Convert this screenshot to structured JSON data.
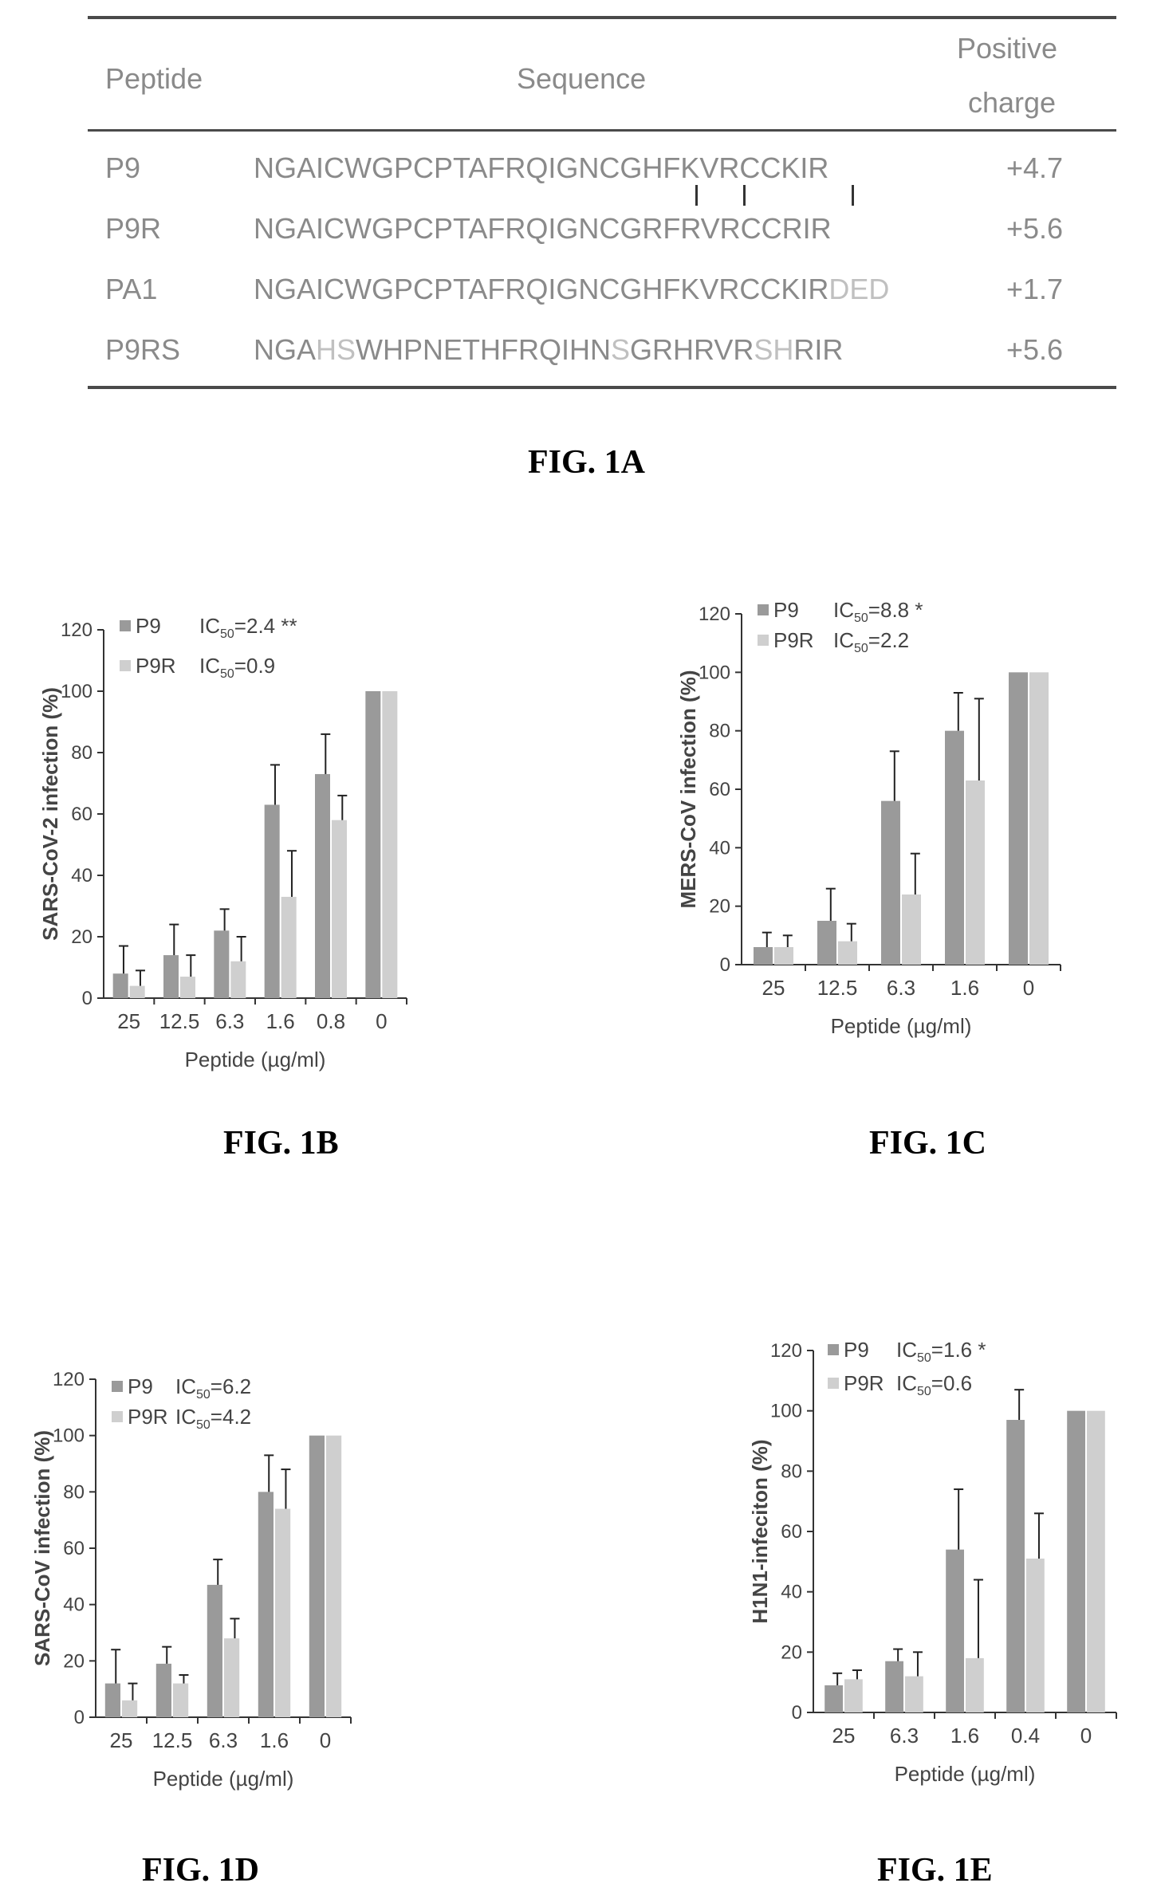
{
  "table": {
    "headers": {
      "peptide": "Peptide",
      "sequence": "Sequence",
      "charge_line1": "Positive",
      "charge_line2": "charge"
    },
    "rows": [
      {
        "peptide": "P9",
        "segments": [
          {
            "t": "NGAICWGPCPTAFRQIGNCGHFKVRCCKIR",
            "m": false
          }
        ],
        "charge": "+4.7"
      },
      {
        "peptide": "P9R",
        "segments": [
          {
            "t": "NGAICWGPCPTAFRQIGNCGRFRVRCCRIR",
            "m": false
          }
        ],
        "charge": "+5.6"
      },
      {
        "peptide": "PA1",
        "segments": [
          {
            "t": "NGAICWGPCPTAFRQIGNCGHFKVRCCKIR",
            "m": false
          },
          {
            "t": "DED",
            "m": true
          }
        ],
        "charge": "+1.7"
      },
      {
        "peptide": "P9RS",
        "segments": [
          {
            "t": "NGA",
            "m": false
          },
          {
            "t": "HS",
            "m": true
          },
          {
            "t": "WHPNETHFRQIHN",
            "m": false
          },
          {
            "t": "S",
            "m": true
          },
          {
            "t": "GRHRVR",
            "m": false
          },
          {
            "t": "SH",
            "m": true
          },
          {
            "t": "RIR",
            "m": false
          }
        ],
        "charge": "+5.6"
      }
    ]
  },
  "captions": {
    "a": "FIG. 1A",
    "b": "FIG. 1B",
    "c": "FIG. 1C",
    "d": "FIG. 1D",
    "e": "FIG. 1E"
  },
  "colors": {
    "p9": "#9a9a9a",
    "p9r": "#cfcfcf",
    "axis": "#333333",
    "text": "#444444"
  },
  "chart_data": [
    {
      "id": "b",
      "type": "bar",
      "categories": [
        "25",
        "12.5",
        "6.3",
        "1.6",
        "0.8",
        "0"
      ],
      "series": [
        {
          "name": "P9",
          "values": [
            8,
            14,
            22,
            63,
            73,
            100
          ],
          "errors": [
            9,
            10,
            7,
            13,
            13,
            0
          ]
        },
        {
          "name": "P9R",
          "values": [
            4,
            7,
            12,
            33,
            58,
            100
          ],
          "errors": [
            5,
            7,
            8,
            15,
            8,
            0
          ]
        }
      ],
      "legend": [
        {
          "name": "P9",
          "ic": "2.4",
          "sig": "**"
        },
        {
          "name": "P9R",
          "ic": "0.9",
          "sig": ""
        }
      ],
      "xlabel": "Peptide (µg/ml)",
      "ylabel": "SARS-CoV-2 infection (%)",
      "ylim": [
        0,
        120
      ],
      "yticks": [
        0,
        20,
        40,
        60,
        80,
        100,
        120
      ]
    },
    {
      "id": "c",
      "type": "bar",
      "categories": [
        "25",
        "12.5",
        "6.3",
        "1.6",
        "0"
      ],
      "series": [
        {
          "name": "P9",
          "values": [
            6,
            15,
            56,
            80,
            100
          ],
          "errors": [
            5,
            11,
            17,
            13,
            0
          ]
        },
        {
          "name": "P9R",
          "values": [
            6,
            8,
            24,
            63,
            100
          ],
          "errors": [
            4,
            6,
            14,
            28,
            0
          ]
        }
      ],
      "legend": [
        {
          "name": "P9",
          "ic": "8.8",
          "sig": "*"
        },
        {
          "name": "P9R",
          "ic": "2.2",
          "sig": ""
        }
      ],
      "xlabel": "Peptide (µg/ml)",
      "ylabel": "MERS-CoV infection (%)",
      "ylim": [
        0,
        120
      ],
      "yticks": [
        0,
        20,
        40,
        60,
        80,
        100,
        120
      ]
    },
    {
      "id": "d",
      "type": "bar",
      "categories": [
        "25",
        "12.5",
        "6.3",
        "1.6",
        "0"
      ],
      "series": [
        {
          "name": "P9",
          "values": [
            12,
            19,
            47,
            80,
            100
          ],
          "errors": [
            12,
            6,
            9,
            13,
            0
          ]
        },
        {
          "name": "P9R",
          "values": [
            6,
            12,
            28,
            74,
            100
          ],
          "errors": [
            6,
            3,
            7,
            14,
            0
          ]
        }
      ],
      "legend": [
        {
          "name": "P9",
          "ic": "6.2",
          "sig": ""
        },
        {
          "name": "P9R",
          "ic": "4.2",
          "sig": ""
        }
      ],
      "xlabel": "Peptide (µg/ml)",
      "ylabel": "SARS-CoV infection (%)",
      "ylim": [
        0,
        120
      ],
      "yticks": [
        0,
        20,
        40,
        60,
        80,
        100,
        120
      ]
    },
    {
      "id": "e",
      "type": "bar",
      "categories": [
        "25",
        "6.3",
        "1.6",
        "0.4",
        "0"
      ],
      "series": [
        {
          "name": "P9",
          "values": [
            9,
            17,
            54,
            97,
            100
          ],
          "errors": [
            4,
            4,
            20,
            10,
            0
          ]
        },
        {
          "name": "P9R",
          "values": [
            11,
            12,
            18,
            51,
            100
          ],
          "errors": [
            3,
            8,
            26,
            15,
            0
          ]
        }
      ],
      "legend": [
        {
          "name": "P9",
          "ic": "1.6",
          "sig": "*"
        },
        {
          "name": "P9R",
          "ic": "0.6",
          "sig": ""
        }
      ],
      "xlabel": "Peptide (µg/ml)",
      "ylabel": "H1N1-infeciton (%)",
      "ylim": [
        0,
        120
      ],
      "yticks": [
        0,
        20,
        40,
        60,
        80,
        100,
        120
      ]
    }
  ]
}
